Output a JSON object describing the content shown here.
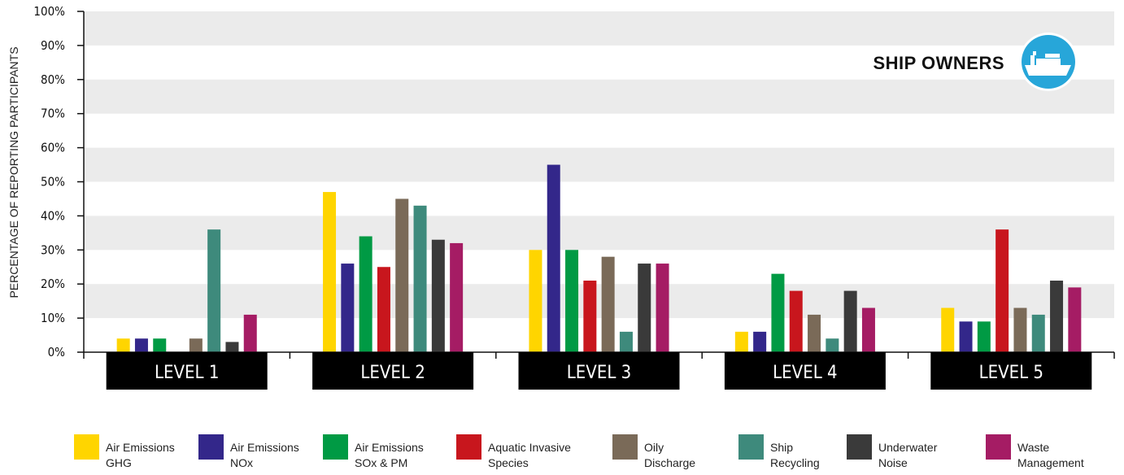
{
  "chart_data": {
    "type": "bar",
    "badge": "SHIP OWNERS",
    "ylabel": "PERCENTAGE OF REPORTING PARTICIPANTS",
    "ylim": [
      0,
      100
    ],
    "yticks": [
      "0%",
      "10%",
      "20%",
      "30%",
      "40%",
      "50%",
      "60%",
      "70%",
      "80%",
      "90%",
      "100%"
    ],
    "categories": [
      "LEVEL 1",
      "LEVEL 2",
      "LEVEL 3",
      "LEVEL 4",
      "LEVEL 5"
    ],
    "series": [
      {
        "name": "Air Emissions GHG",
        "label_lines": [
          "Air Emissions",
          "GHG"
        ],
        "color": "#FFD500",
        "values": [
          4,
          47,
          30,
          6,
          13
        ]
      },
      {
        "name": "Air Emissions NOx",
        "label_lines": [
          "Air Emissions",
          "NOx"
        ],
        "color": "#33278A",
        "values": [
          4,
          26,
          55,
          6,
          9
        ]
      },
      {
        "name": "Air Emissions SOx & PM",
        "label_lines": [
          "Air Emissions",
          "SOx & PM"
        ],
        "color": "#009A44",
        "values": [
          4,
          34,
          30,
          23,
          9
        ]
      },
      {
        "name": "Aquatic Invasive Species",
        "label_lines": [
          "Aquatic Invasive",
          "Species"
        ],
        "color": "#C8161D",
        "values": [
          0,
          25,
          21,
          18,
          36
        ]
      },
      {
        "name": "Oily Discharge",
        "label_lines": [
          "Oily",
          "Discharge"
        ],
        "color": "#7A6A58",
        "values": [
          4,
          45,
          28,
          11,
          13
        ]
      },
      {
        "name": "Ship Recycling",
        "label_lines": [
          "Ship",
          "Recycling"
        ],
        "color": "#3E8A7C",
        "values": [
          36,
          43,
          6,
          4,
          11
        ]
      },
      {
        "name": "Underwater Noise",
        "label_lines": [
          "Underwater",
          "Noise"
        ],
        "color": "#3A3A3A",
        "values": [
          3,
          33,
          26,
          18,
          21
        ]
      },
      {
        "name": "Waste Management",
        "label_lines": [
          "Waste",
          "Management"
        ],
        "color": "#A51C64",
        "values": [
          11,
          32,
          26,
          13,
          19
        ]
      }
    ]
  }
}
